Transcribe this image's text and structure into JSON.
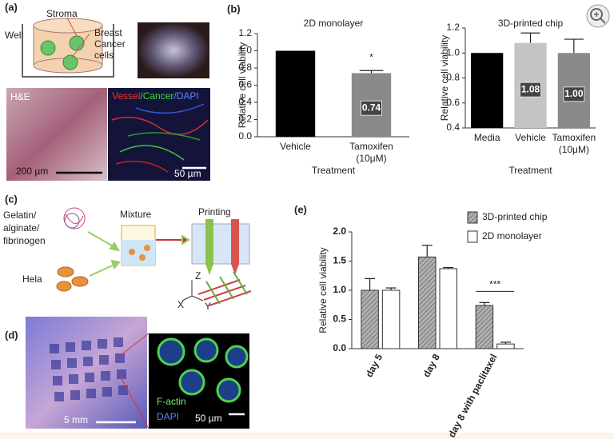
{
  "chart_data": [
    {
      "type": "bar",
      "title": "2D monolayer",
      "ylabel": "Relative cell viability",
      "xlabel": "Treatment",
      "categories": [
        "Vehicle",
        "Tamoxifen (10μM)"
      ],
      "values": [
        1.0,
        0.74
      ],
      "errors": [
        null,
        0.03
      ],
      "value_labels": [
        null,
        "0.74"
      ],
      "colors": [
        "#000000",
        "#8a8a8a"
      ],
      "annotation": "*",
      "ylim": [
        0,
        1.2
      ],
      "yticks": [
        {
          "value": 0,
          "label": "0.0"
        },
        0.2,
        0.4,
        0.6,
        0.8,
        {
          "value": 1,
          "label": "1.0"
        },
        1.2
      ]
    },
    {
      "type": "bar",
      "title": "3D-printed chip",
      "ylabel": "Relative cell viability",
      "xlabel": "Treatment",
      "categories": [
        "Media",
        "Vehicle",
        "Tamoxifen (10μM)"
      ],
      "values": [
        1.0,
        1.08,
        1.0
      ],
      "errors": [
        null,
        0.08,
        0.11
      ],
      "value_labels": [
        null,
        "1.08",
        "1.00"
      ],
      "colors": [
        "#000000",
        "#c4c4c4",
        "#8a8a8a"
      ],
      "ylim": [
        0.4,
        1.2
      ],
      "yticks": [
        0.4,
        0.6,
        0.8,
        {
          "value": 1,
          "label": "1.0"
        },
        1.2
      ]
    },
    {
      "type": "grouped-bar",
      "ylabel": "Relative cell viability",
      "legend": "upper right",
      "annotation": "***",
      "categories": [
        "day 5",
        "day 8",
        "day 8 with paclitaxel"
      ],
      "series": [
        {
          "name": "3D-printed chip",
          "color": "#b0b0b0",
          "hatch": true,
          "values": [
            1.0,
            1.57,
            0.74
          ],
          "errors": [
            0.2,
            0.2,
            0.05
          ]
        },
        {
          "name": "2D monolayer",
          "color": "#ffffff",
          "hatch": false,
          "values": [
            1.0,
            1.37,
            0.08
          ],
          "errors": [
            0.04,
            0.02,
            0.03
          ]
        }
      ],
      "ylim": [
        0,
        2
      ],
      "yticks": [
        {
          "value": 0,
          "label": "0.0"
        },
        0.5,
        {
          "value": 1,
          "label": "1.0"
        },
        1.5,
        {
          "value": 2,
          "label": "2.0"
        }
      ]
    }
  ],
  "panels": {
    "a": {
      "label": "(a)",
      "well": "Well",
      "stroma": "Stroma",
      "cells": [
        "Breast",
        "Cancer",
        "cells"
      ],
      "stain": "H&E",
      "vessel": "Vessel",
      "cancer": "/Cancer",
      "dapi": "/DAPI",
      "scale_left": "200 µm",
      "scale_right": "50 µm"
    },
    "b": {
      "label": "(b)"
    },
    "c": {
      "label": "(c)",
      "materials": [
        "Gelatin/",
        "alginate/",
        "fibrinogen"
      ],
      "mixture": "Mixture",
      "printing": "Printing",
      "cells": "Hela",
      "x": "X",
      "y": "Y",
      "z": "Z"
    },
    "d": {
      "label": "(d)",
      "scale_left": "5 mm",
      "actin": "F-actin",
      "dapi": "DAPI",
      "scale_right": "50 µm"
    },
    "e": {
      "label": "(e)"
    }
  }
}
